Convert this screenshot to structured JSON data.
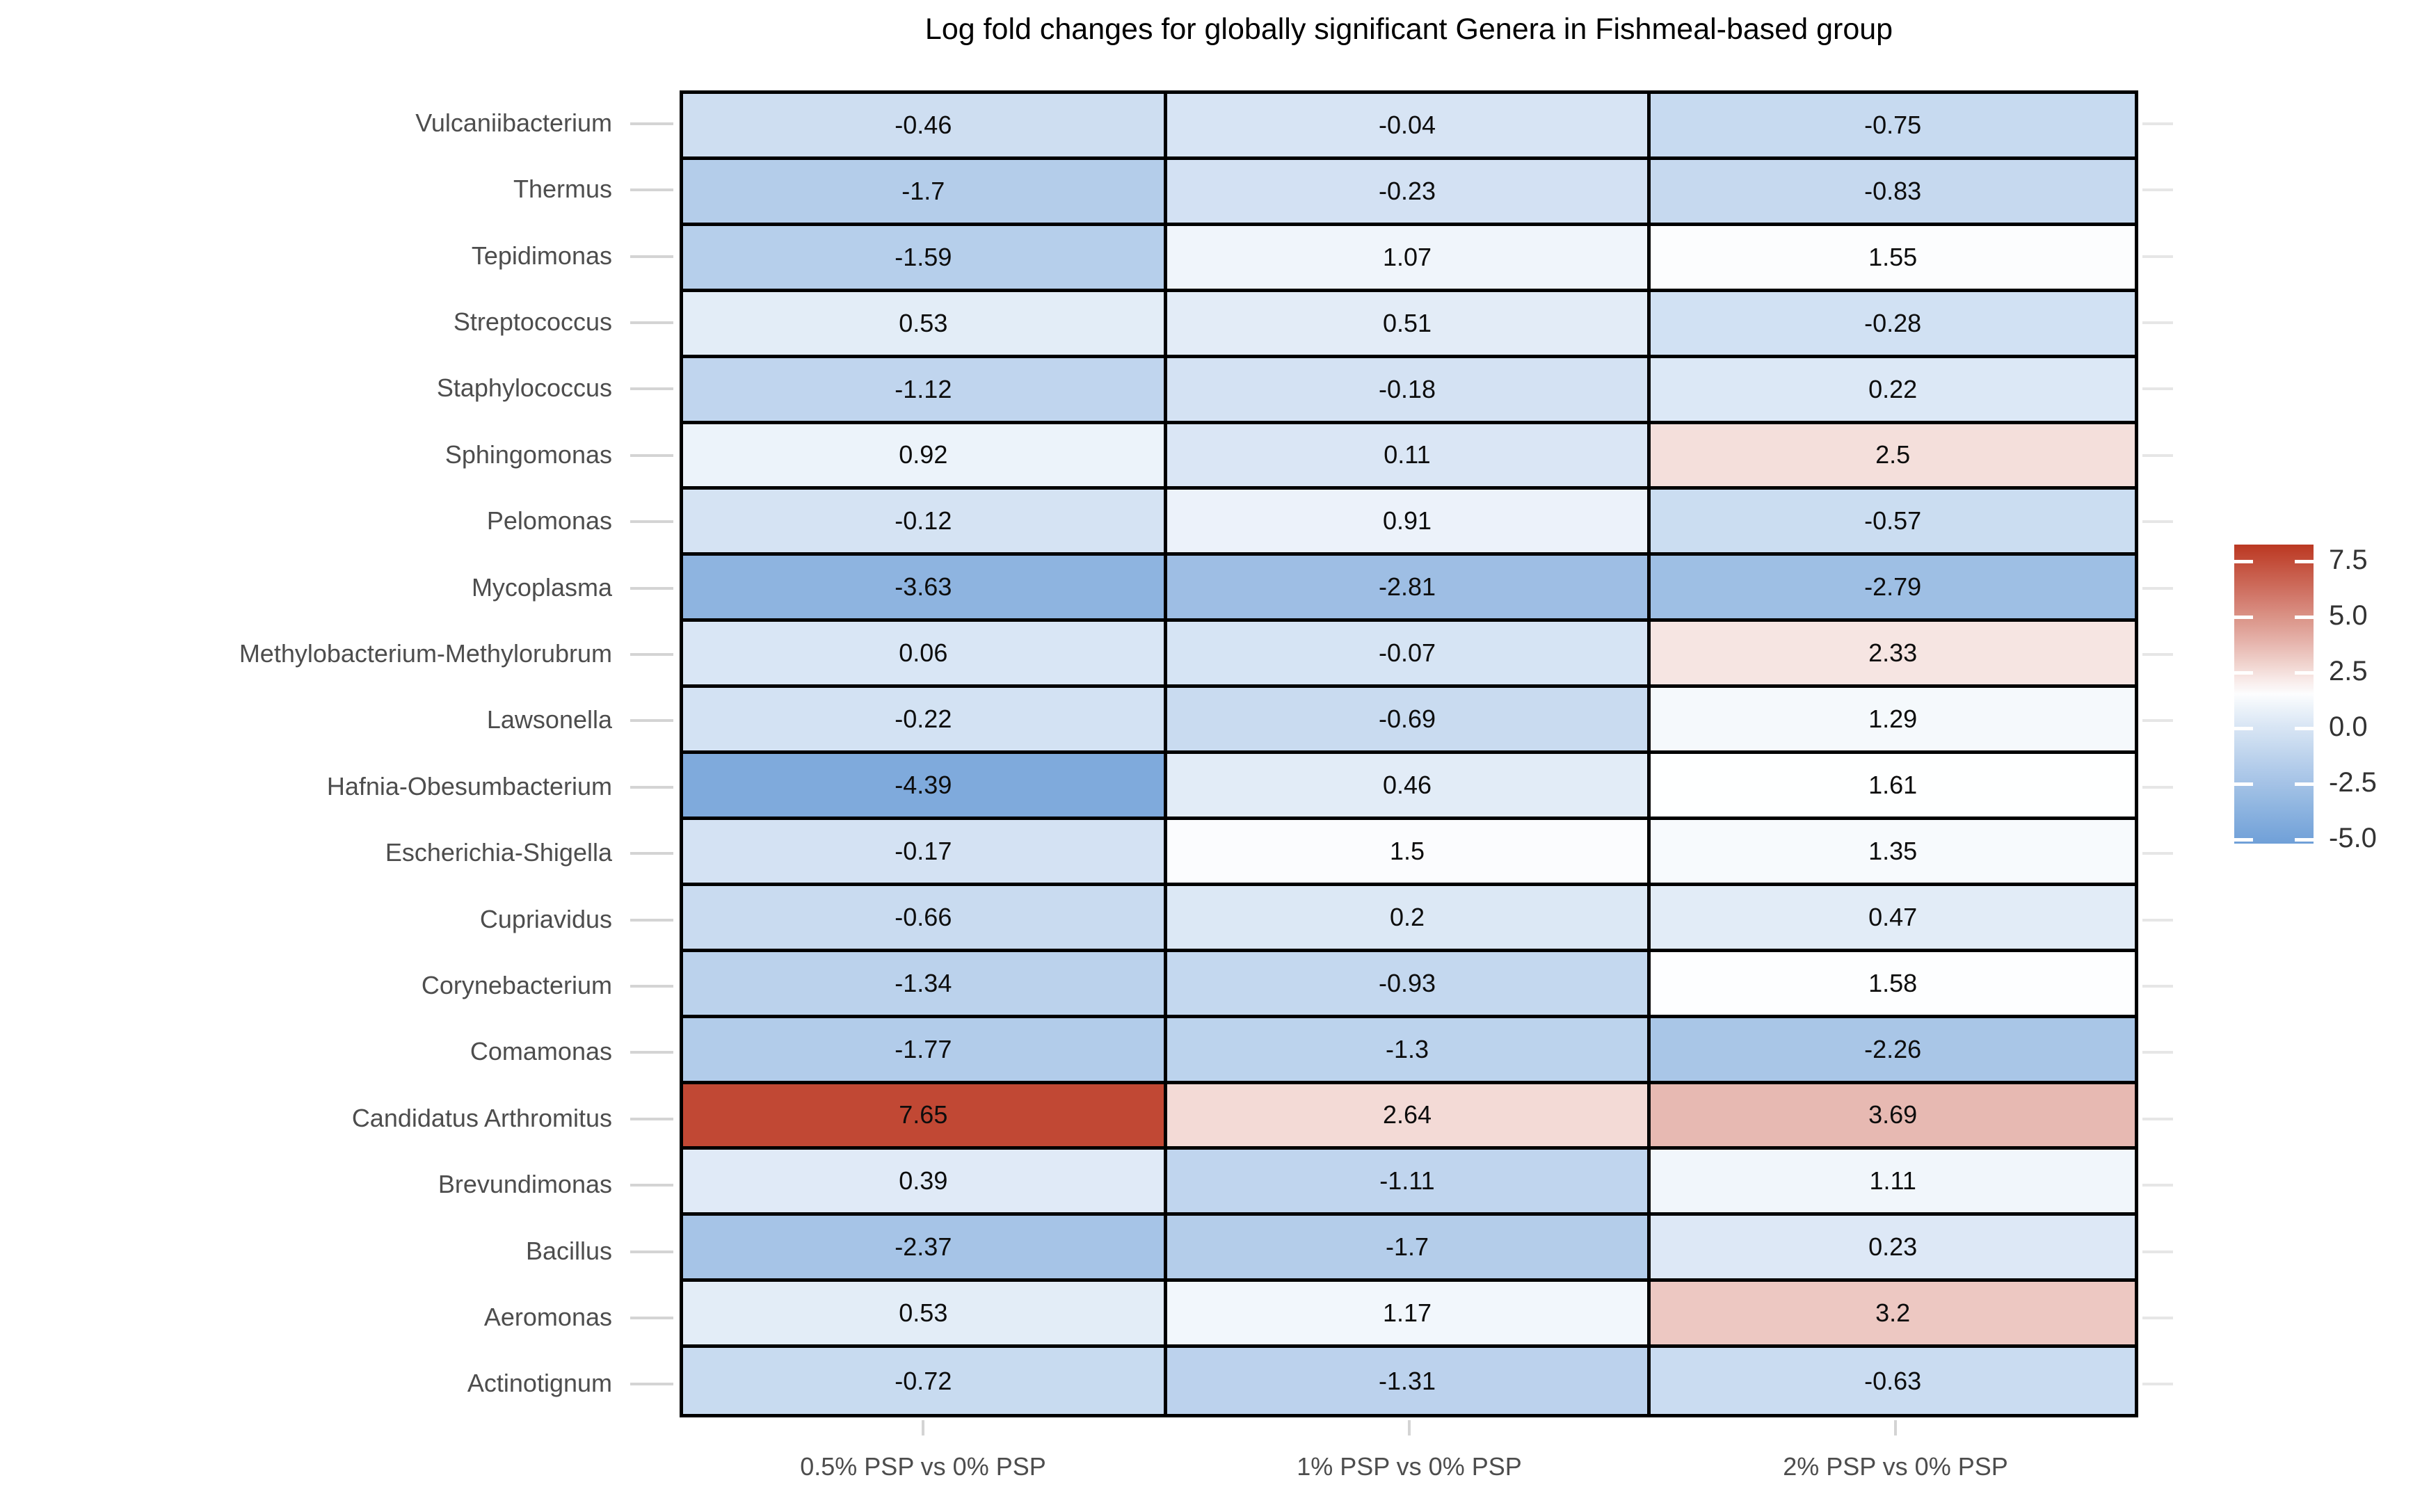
{
  "title": "Log fold changes for globally significant Genera in Fishmeal-based group",
  "chart_data": {
    "type": "heatmap",
    "title": "Log fold changes for globally significant Genera in Fishmeal-based group",
    "xlabel": "",
    "ylabel": "",
    "grid": "off",
    "columns": [
      "0.5% PSP vs 0% PSP",
      "1% PSP vs 0% PSP",
      "2% PSP vs 0% PSP"
    ],
    "rows": [
      {
        "genus": "Vulcaniibacterium",
        "values": [
          -0.46,
          -0.04,
          -0.75
        ]
      },
      {
        "genus": "Thermus",
        "values": [
          -1.7,
          -0.23,
          -0.83
        ]
      },
      {
        "genus": "Tepidimonas",
        "values": [
          -1.59,
          1.07,
          1.55
        ]
      },
      {
        "genus": "Streptococcus",
        "values": [
          0.53,
          0.51,
          -0.28
        ]
      },
      {
        "genus": "Staphylococcus",
        "values": [
          -1.12,
          -0.18,
          0.22
        ]
      },
      {
        "genus": "Sphingomonas",
        "values": [
          0.92,
          0.11,
          2.5
        ]
      },
      {
        "genus": "Pelomonas",
        "values": [
          -0.12,
          0.91,
          -0.57
        ]
      },
      {
        "genus": "Mycoplasma",
        "values": [
          -3.63,
          -2.81,
          -2.79
        ]
      },
      {
        "genus": "Methylobacterium-Methylorubrum",
        "values": [
          0.06,
          -0.07,
          2.33
        ]
      },
      {
        "genus": "Lawsonella",
        "values": [
          -0.22,
          -0.69,
          1.29
        ]
      },
      {
        "genus": "Hafnia-Obesumbacterium",
        "values": [
          -4.39,
          0.46,
          1.61
        ]
      },
      {
        "genus": "Escherichia-Shigella",
        "values": [
          -0.17,
          1.5,
          1.35
        ]
      },
      {
        "genus": "Cupriavidus",
        "values": [
          -0.66,
          0.2,
          0.47
        ]
      },
      {
        "genus": "Corynebacterium",
        "values": [
          -1.34,
          -0.93,
          1.58
        ]
      },
      {
        "genus": "Comamonas",
        "values": [
          -1.77,
          -1.3,
          -2.26
        ]
      },
      {
        "genus": "Candidatus Arthromitus",
        "values": [
          7.65,
          2.64,
          3.69
        ]
      },
      {
        "genus": "Brevundimonas",
        "values": [
          0.39,
          -1.11,
          1.11
        ]
      },
      {
        "genus": "Bacillus",
        "values": [
          -2.37,
          -1.7,
          0.23
        ]
      },
      {
        "genus": "Aeromonas",
        "values": [
          0.53,
          1.17,
          3.2
        ]
      },
      {
        "genus": "Actinotignum",
        "values": [
          -0.72,
          -1.31,
          -0.63
        ]
      }
    ],
    "legend": {
      "position": "right",
      "tick_values": [
        7.5,
        5.0,
        2.5,
        0.0,
        -2.5,
        -5.0
      ],
      "tick_labels": [
        "7.5",
        "5.0",
        "2.5",
        "0.0",
        "-2.5",
        "-5.0"
      ],
      "bar_top_value": 8.25,
      "bar_bottom_value": -5.2
    },
    "color_scale": {
      "min_color": "#7FAADC",
      "mid_color": "#FFFFFF",
      "max_color": "#C14834",
      "midpoint": 1.63,
      "domain_min": -4.39,
      "domain_max": 7.65
    }
  }
}
